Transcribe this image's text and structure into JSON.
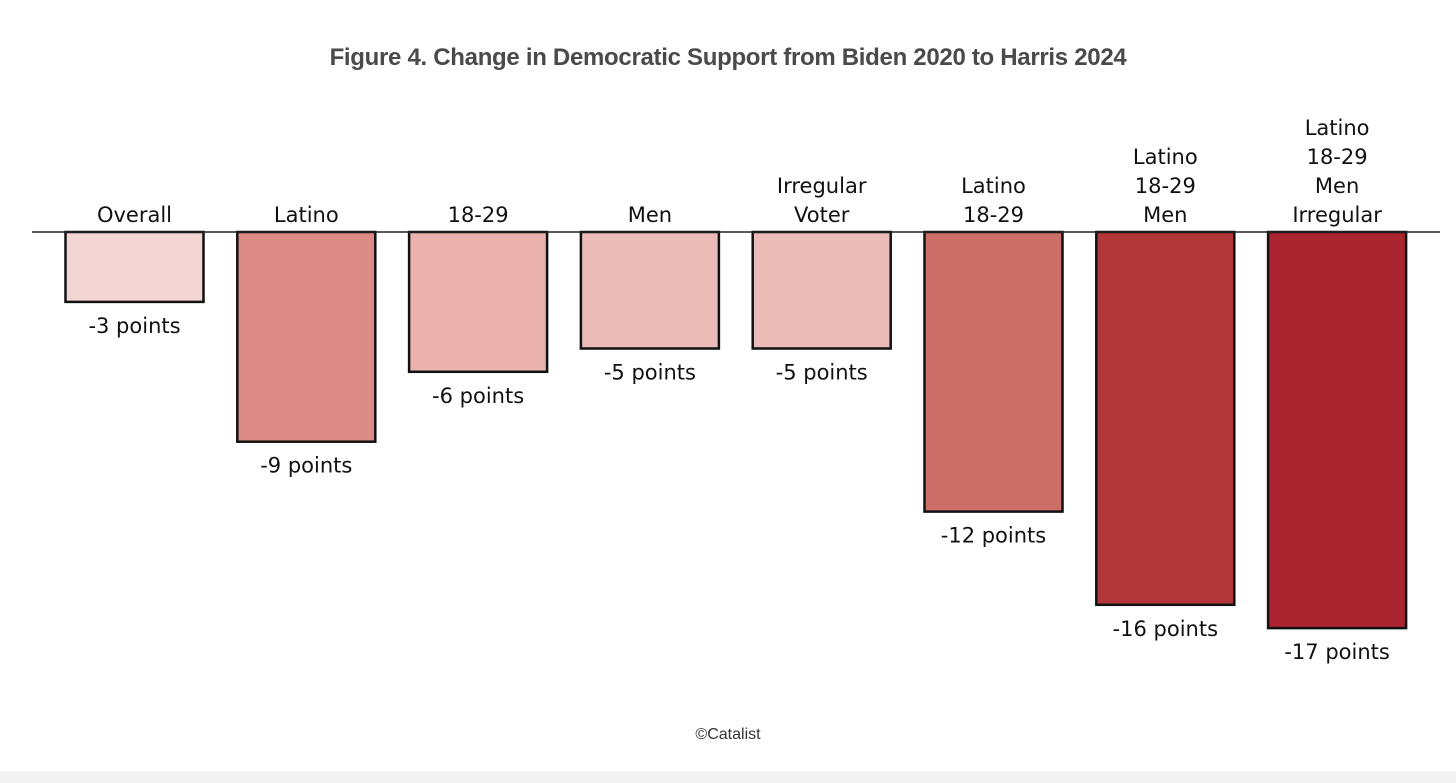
{
  "chart_data": {
    "type": "bar",
    "title": "Figure 4. Change in Democratic Support from Biden 2020 to Harris 2024",
    "categories": [
      [
        "Overall"
      ],
      [
        "Latino"
      ],
      [
        "18-29"
      ],
      [
        "Men"
      ],
      [
        "Irregular",
        "Voter"
      ],
      [
        "Latino",
        "18-29"
      ],
      [
        "Latino",
        "18-29",
        "Men"
      ],
      [
        "Latino",
        "18-29",
        "Men",
        "Irregular"
      ]
    ],
    "values": [
      -3,
      -9,
      -6,
      -5,
      -5,
      -12,
      -16,
      -17
    ],
    "value_labels": [
      "-3 points",
      "-9 points",
      "-6 points",
      "-5 points",
      "-5 points",
      "-12 points",
      "-16 points",
      "-17 points"
    ],
    "colors": [
      "#f3d6d4",
      "#dc8a85",
      "#ebb1ad",
      "#ebbbb8",
      "#ebbbb8",
      "#cb6f68",
      "#b33639",
      "#ab2530"
    ],
    "bar_edge_color": "#111111",
    "axis_line_color": "#222222",
    "ylim": [
      -17,
      0
    ],
    "grid": false,
    "legend": "none",
    "xlabel": "",
    "ylabel": ""
  },
  "credit": "©Catalist"
}
